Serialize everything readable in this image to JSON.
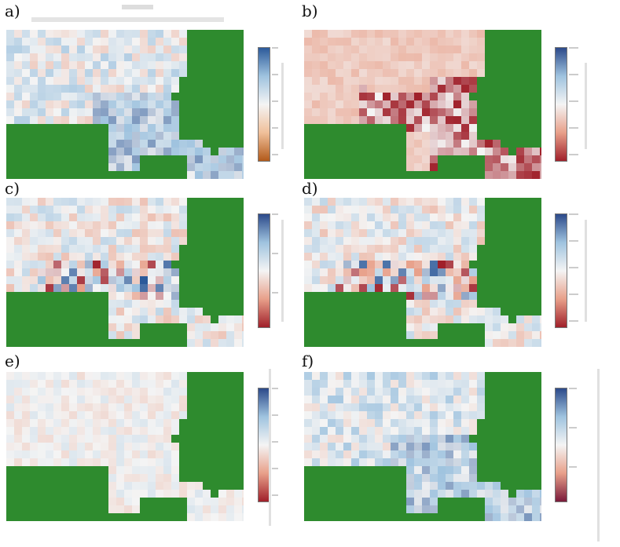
{
  "panels": [
    {
      "label": "a)",
      "scheme": "div",
      "bias": 0.15
    },
    {
      "label": "b)",
      "scheme": "red",
      "bias": -0.6
    },
    {
      "label": "c)",
      "scheme": "mixed",
      "bias": 0.0
    },
    {
      "label": "d)",
      "scheme": "mixed",
      "bias": 0.0
    },
    {
      "label": "e)",
      "scheme": "pale",
      "bias": 0.05
    },
    {
      "label": "f)",
      "scheme": "blue",
      "bias": 0.3
    }
  ],
  "colors": {
    "land_mask": "#2e8b2e",
    "diverging_blue": "#2c5a9a",
    "diverging_red": "#b2182b",
    "neutral": "#f4f4f4"
  }
}
